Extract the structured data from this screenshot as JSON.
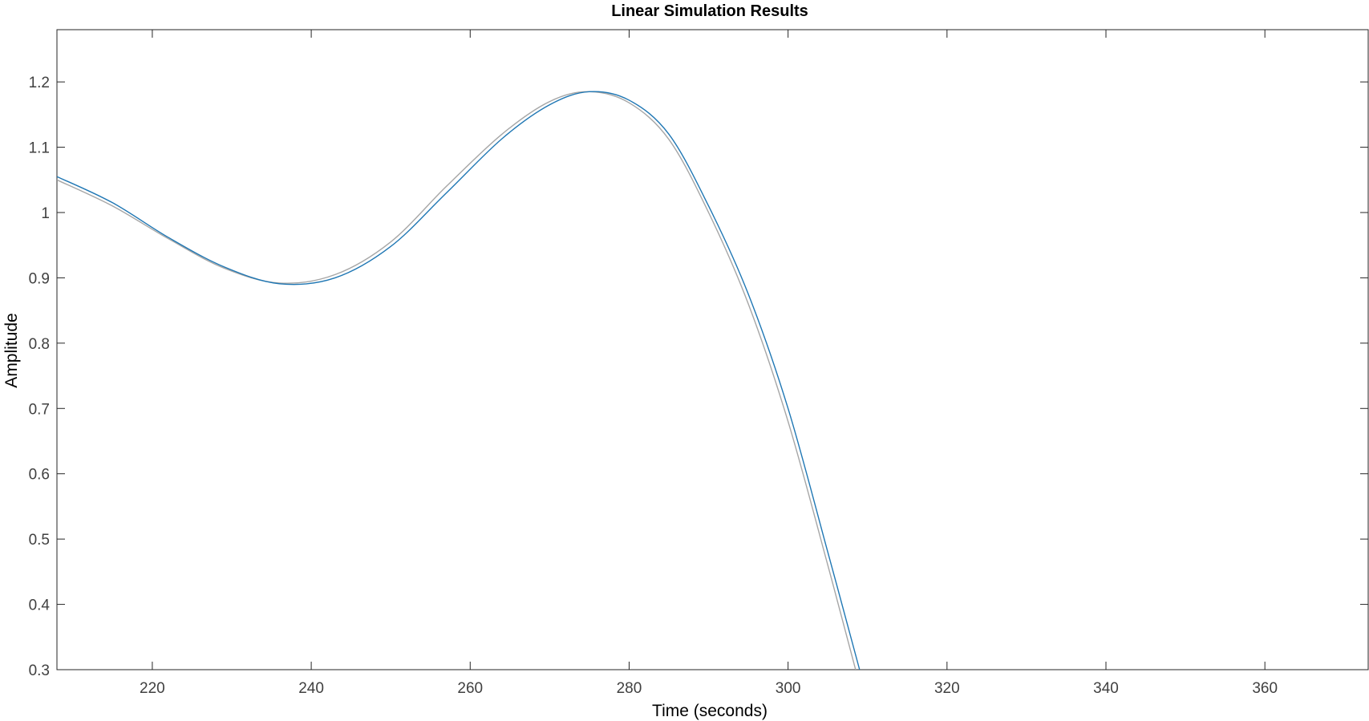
{
  "chart_data": {
    "type": "line",
    "title": "Linear Simulation Results",
    "xlabel": "Time (seconds)",
    "ylabel": "Amplitude",
    "xlim": [
      208,
      373
    ],
    "ylim": [
      0.3,
      1.28
    ],
    "xticks": [
      220,
      240,
      260,
      280,
      300,
      320,
      340,
      360
    ],
    "yticks": [
      0.3,
      0.4,
      0.5,
      0.6,
      0.7,
      0.8,
      0.9,
      1,
      1.1,
      1.2
    ],
    "ytick_labels": [
      "0.3",
      "0.4",
      "0.5",
      "0.6",
      "0.7",
      "0.8",
      "0.9",
      "1",
      "1.1",
      "1.2"
    ],
    "grid": false,
    "series": [
      {
        "color": "#a6a6a6",
        "x": [
          208,
          215,
          222,
          229,
          236,
          243,
          250,
          257,
          264,
          270,
          275,
          280,
          285,
          290,
          295,
          300,
          305,
          308.5
        ],
        "y": [
          1.05,
          1.01,
          0.96,
          0.915,
          0.892,
          0.905,
          0.955,
          1.04,
          1.12,
          1.17,
          1.185,
          1.168,
          1.112,
          1.0,
          0.86,
          0.68,
          0.46,
          0.3
        ]
      },
      {
        "color": "#1f77b4",
        "x": [
          208,
          215,
          222,
          229,
          236,
          243,
          250,
          257,
          264,
          270,
          275,
          280,
          285,
          290,
          295,
          300,
          305,
          309
        ],
        "y": [
          1.055,
          1.015,
          0.962,
          0.917,
          0.891,
          0.9,
          0.948,
          1.03,
          1.113,
          1.165,
          1.185,
          1.172,
          1.12,
          1.01,
          0.875,
          0.7,
          0.48,
          0.3
        ]
      }
    ]
  }
}
